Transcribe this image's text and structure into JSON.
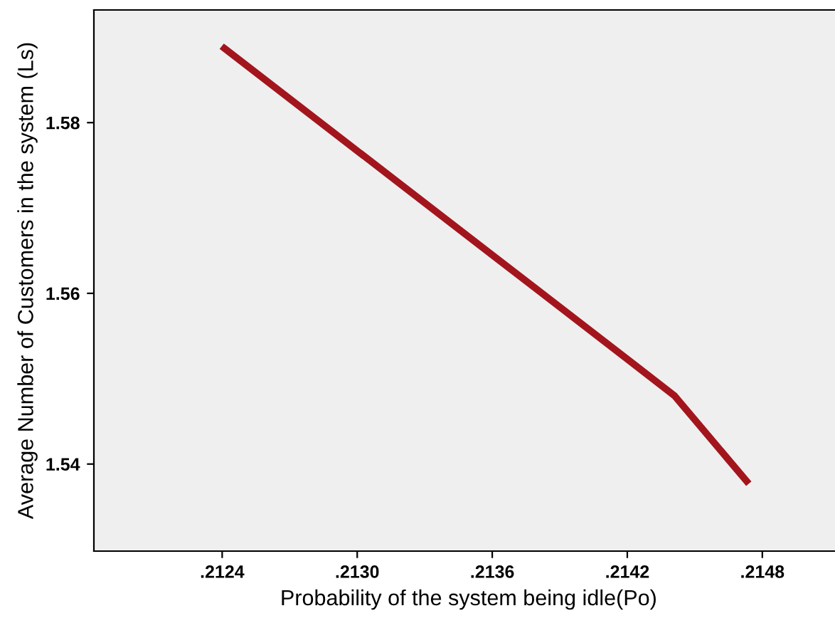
{
  "chart_data": {
    "type": "line",
    "xlabel": "Probability of the system being idle(Po)",
    "ylabel": "Average Number of Customers in the system (Ls)",
    "x": [
      0.21241,
      0.213,
      0.2136,
      0.2142,
      0.21441,
      0.21473
    ],
    "series": [
      {
        "color": "#a3151d",
        "values": [
          1.5887,
          1.5767,
          1.5645,
          1.5523,
          1.548,
          1.538
        ]
      }
    ],
    "xlim": [
      0.21183,
      0.21516
    ],
    "ylim": [
      1.5298,
      1.5932
    ],
    "xticks": [
      {
        "value": 0.2124,
        "label": ".2124"
      },
      {
        "value": 0.213,
        "label": ".2130"
      },
      {
        "value": 0.2136,
        "label": ".2136"
      },
      {
        "value": 0.2142,
        "label": ".2142"
      },
      {
        "value": 0.2148,
        "label": ".2148"
      }
    ],
    "yticks": [
      {
        "value": 1.54,
        "label": "1.54"
      },
      {
        "value": 1.56,
        "label": "1.56"
      },
      {
        "value": 1.58,
        "label": "1.58"
      }
    ],
    "grid": false,
    "marker": "none",
    "line_style": "solid"
  }
}
